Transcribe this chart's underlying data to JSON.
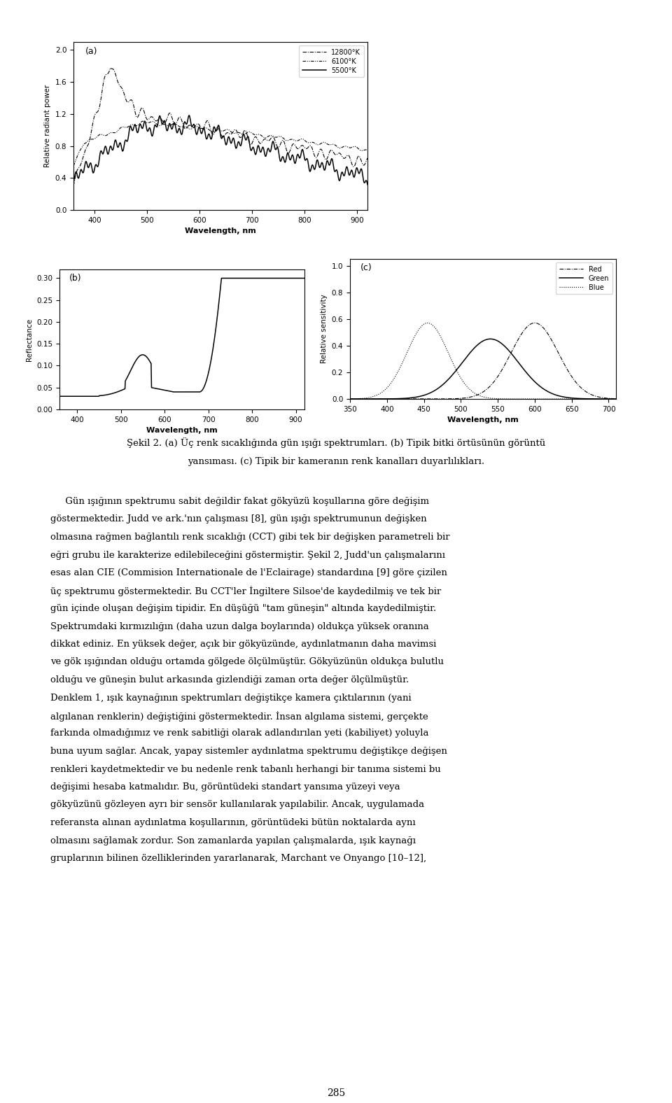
{
  "fig_width": 9.6,
  "fig_height": 15.76,
  "background_color": "#ffffff",
  "plot_a": {
    "label": "(a)",
    "xlabel": "Wavelength, nm",
    "ylabel": "Relative radiant power",
    "xlim": [
      360,
      920
    ],
    "ylim": [
      0,
      2.1
    ],
    "yticks": [
      0,
      0.4,
      0.8,
      1.2,
      1.6,
      2
    ],
    "xticks": [
      400,
      500,
      600,
      700,
      800,
      900
    ],
    "legend": [
      "12800°K",
      "6100°K",
      "5500°K"
    ]
  },
  "plot_b": {
    "label": "(b)",
    "xlabel": "Wavelength, nm",
    "ylabel": "Reflectance",
    "xlim": [
      360,
      920
    ],
    "ylim": [
      0,
      0.32
    ],
    "yticks": [
      0,
      0.05,
      0.1,
      0.15,
      0.2,
      0.25,
      0.3
    ],
    "xticks": [
      400,
      500,
      600,
      700,
      800,
      900
    ]
  },
  "plot_c": {
    "label": "(c)",
    "xlabel": "Wavelength, nm",
    "ylabel": "Relative sensitivity",
    "xlim": [
      350,
      710
    ],
    "ylim": [
      0,
      1.05
    ],
    "yticks": [
      0,
      0.2,
      0.4,
      0.6,
      0.8,
      1
    ],
    "xticks": [
      350,
      400,
      450,
      500,
      550,
      600,
      650,
      700
    ],
    "legend": [
      "Red",
      "Green",
      "Blue"
    ]
  },
  "caption_line1": "Şekil 2. (a) Üç renk sıcaklığında gün ışığı spektrumları. (b) Tipik bitki örtüsünün görüntü",
  "caption_line2": "yansıması. (c) Tipik bir kameranın renk kanalları duyarlılıkları.",
  "body_text": [
    "     Gün ışığının spektrumu sabit değildir fakat gökyüzü koşullarına göre değişim",
    "göstermektedir. Judd ve ark.'nın çalışması [8], gün ışığı spektrumunun değişken",
    "olmasına rağmen bağlantılı renk sıcaklığı (CCT) gibi tek bir değişken parametreli bir",
    "eğri grubu ile karakterize edilebileceğini göstermiştir. Şekil 2, Judd'un çalışmalarını",
    "esas alan CIE (Commision Internationale de l'Eclairage) standardına [9] göre çizilen",
    "üç spektrumu göstermektedir. Bu CCT'ler İngiltere Silsoe'de kaydedilmiş ve tek bir",
    "gün içinde oluşan değişim tipidir. En düşüğü \"tam güneşin\" altında kaydedilmiştir.",
    "Spektrumdaki kırmızılığın (daha uzun dalga boylarında) oldukça yüksek oranına",
    "dikkat ediniz. En yüksek değer, açık bir gökyüzünde, aydınlatmanın daha mavimsi",
    "ve gök ışığından olduğu ortamda gölgede ölçülmüştür. Gökyüzünün oldukça bulutlu",
    "olduğu ve güneşin bulut arkasında gizlendiği zaman orta değer ölçülmüştür.",
    "Denklem 1, ışık kaynağının spektrumları değiştikçe kamera çıktılarının (yani",
    "algılanan renklerin) değiştiğini göstermektedir. İnsan algılama sistemi, gerçekte",
    "farkında olmadığımız ve renk sabitliği olarak adlandırılan yeti (kabiliyet) yoluyla",
    "buna uyum sağlar. Ancak, yapay sistemler aydınlatma spektrumu değiştikçe değişen",
    "renkleri kaydetmektedir ve bu nedenle renk tabanlı herhangi bir tanıma sistemi bu",
    "değişimi hesaba katmalıdır. Bu, görüntüdeki standart yansıma yüzeyi veya",
    "gökyüzünü gözleyen ayrı bir sensör kullanılarak yapılabilir. Ancak, uygulamada",
    "referansta alınan aydınlatma koşullarının, görüntüdeki bütün noktalarda aynı",
    "olmasını sağlamak zordur. Son zamanlarda yapılan çalışmalarda, ışık kaynağı",
    "gruplarının bilinen özelliklerinden yararlanarak, Marchant ve Onyango [10–12],"
  ],
  "page_number": "285"
}
